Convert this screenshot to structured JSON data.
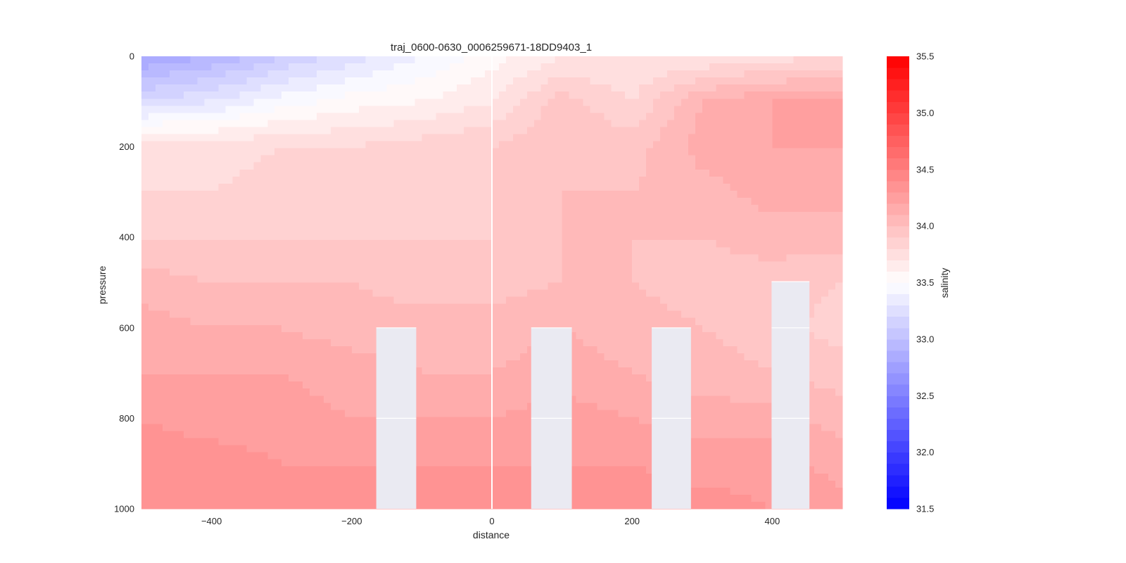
{
  "chart_data": {
    "type": "heatmap",
    "subtype": "filled-contour section",
    "title": "traj_0600-0630_0006259671-18DD9403_1",
    "xlabel": "distance",
    "ylabel": "pressure",
    "xlim": [
      -500,
      500
    ],
    "ylim": [
      1000,
      0
    ],
    "y_axis_inverted": true,
    "xticks": [
      -400,
      -200,
      0,
      200,
      400
    ],
    "yticks": [
      0,
      200,
      400,
      600,
      800,
      1000
    ],
    "grid": true,
    "colorbar": {
      "label": "salinity",
      "min": 31.5,
      "max": 35.5,
      "step": 0.1,
      "ticks": [
        31.5,
        32.0,
        32.5,
        33.0,
        33.5,
        34.0,
        34.5,
        35.0,
        35.5
      ],
      "center": 33.5,
      "cmap": "bwr",
      "low_color": "#0000ff",
      "mid_color": "#ffffff",
      "high_color": "#ff0000"
    },
    "profiles": [
      {
        "distance": -500,
        "pressure": [
          0,
          100,
          200,
          300,
          400,
          500,
          600,
          700,
          800,
          900,
          1000
        ],
        "salinity": [
          32.8,
          33.2,
          33.8,
          33.8,
          33.9,
          34.05,
          34.15,
          34.2,
          34.3,
          34.35,
          34.4
        ]
      },
      {
        "distance": -400,
        "pressure": [
          0,
          100,
          200,
          300,
          400,
          500,
          600,
          700,
          800,
          900,
          1000
        ],
        "salinity": [
          32.9,
          33.3,
          33.75,
          33.8,
          33.9,
          34.0,
          34.1,
          34.2,
          34.25,
          34.35,
          34.4
        ]
      },
      {
        "distance": -300,
        "pressure": [
          0,
          100,
          200,
          300,
          400,
          500,
          600,
          700,
          800,
          900,
          1000
        ],
        "salinity": [
          33.1,
          33.45,
          33.8,
          33.85,
          33.9,
          34.0,
          34.1,
          34.2,
          34.25,
          34.3,
          34.4
        ]
      },
      {
        "distance": -200,
        "pressure": [
          0,
          100,
          200,
          300,
          400,
          500,
          600,
          700,
          800,
          900,
          1000
        ],
        "salinity": [
          33.25,
          33.55,
          33.8,
          33.85,
          33.9,
          34.0,
          34.05,
          34.15,
          34.2,
          34.3,
          34.4
        ]
      },
      {
        "distance": -100,
        "pressure": [
          0,
          100,
          200,
          300,
          400,
          500,
          600,
          700,
          800,
          900,
          1000
        ],
        "salinity": [
          33.4,
          33.6,
          33.85,
          33.85,
          33.9,
          33.95,
          34.05,
          34.1,
          34.2,
          34.3,
          34.4
        ]
      },
      {
        "distance": 0,
        "pressure": [
          0,
          100,
          200,
          300,
          400,
          500,
          600,
          700,
          800,
          900,
          1000
        ],
        "salinity": [
          33.55,
          33.7,
          33.9,
          33.9,
          33.9,
          33.95,
          34.05,
          34.1,
          34.2,
          34.3,
          34.35
        ]
      },
      {
        "distance": 100,
        "pressure": [
          0,
          100,
          200,
          300,
          400,
          500,
          600,
          700,
          800,
          900,
          1000
        ],
        "salinity": [
          33.7,
          33.95,
          34.0,
          34.0,
          34.0,
          34.0,
          34.1,
          34.15,
          34.25,
          34.3,
          34.4
        ]
      },
      {
        "distance": 200,
        "pressure": [
          0,
          100,
          200,
          300,
          400,
          500,
          600,
          700,
          800,
          900,
          1000
        ],
        "salinity": [
          33.7,
          33.8,
          33.95,
          34.0,
          34.0,
          34.0,
          34.05,
          34.1,
          34.2,
          34.3,
          34.35
        ]
      },
      {
        "distance": 300,
        "pressure": [
          0,
          100,
          200,
          300,
          400,
          500,
          600,
          700,
          800,
          900,
          1000
        ],
        "salinity": [
          33.7,
          34.1,
          34.15,
          34.05,
          34.0,
          33.95,
          34.0,
          34.05,
          34.15,
          34.25,
          34.35
        ]
      },
      {
        "distance": 400,
        "pressure": [
          0,
          100,
          200,
          300,
          400,
          500,
          600,
          700,
          800,
          900,
          1000
        ],
        "salinity": [
          33.75,
          34.2,
          34.2,
          34.15,
          34.05,
          33.95,
          33.95,
          34.0,
          34.15,
          34.25,
          34.3
        ]
      },
      {
        "distance": 500,
        "pressure": [
          0,
          100,
          200,
          300,
          400,
          500,
          600,
          700,
          800,
          900,
          1000
        ],
        "salinity": [
          33.8,
          34.2,
          34.2,
          34.15,
          34.05,
          33.9,
          33.85,
          33.95,
          34.05,
          34.15,
          34.25
        ]
      }
    ],
    "masked_regions": [
      {
        "x0": -165,
        "x1": -108,
        "p0": 600,
        "p1": 1000
      },
      {
        "x0": 56,
        "x1": 114,
        "p0": 600,
        "p1": 1000
      },
      {
        "x0": 228,
        "x1": 284,
        "p0": 600,
        "p1": 1000
      },
      {
        "x0": 399,
        "x1": 453,
        "p0": 498,
        "p1": 1000
      }
    ],
    "section_line": {
      "distance": 0
    }
  }
}
